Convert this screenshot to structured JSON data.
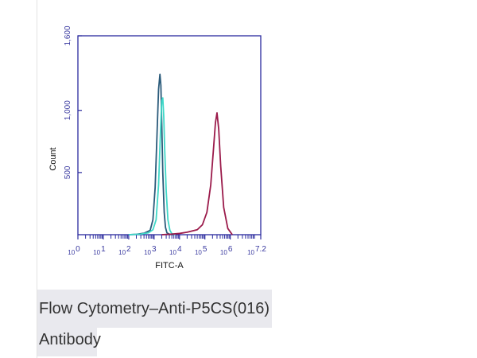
{
  "chart_data": {
    "type": "line",
    "title": "",
    "xlabel": "FITC-A",
    "ylabel": "Count",
    "x_scale": "log",
    "xlim": [
      1,
      15848932
    ],
    "ylim": [
      0,
      1600
    ],
    "x_ticks": [
      {
        "base": "10",
        "exp": "0"
      },
      {
        "base": "10",
        "exp": "1"
      },
      {
        "base": "10",
        "exp": "2"
      },
      {
        "base": "10",
        "exp": "3"
      },
      {
        "base": "10",
        "exp": "4"
      },
      {
        "base": "10",
        "exp": "5"
      },
      {
        "base": "10",
        "exp": "6"
      },
      {
        "base": "10",
        "exp": "7.2"
      }
    ],
    "y_ticks": [
      "500",
      "1,000",
      "1,600"
    ],
    "y_tick_values": [
      500,
      1000,
      1600
    ],
    "grid": false,
    "legend": "none",
    "series": [
      {
        "color": "#2a5a7a",
        "x": [
          100,
          200,
          400,
          700,
          900,
          1100,
          1300,
          1500,
          1700,
          1850,
          2000,
          2200,
          2500,
          2800,
          3200,
          4000,
          6000
        ],
        "y": [
          0,
          3,
          12,
          35,
          120,
          380,
          800,
          1170,
          1290,
          1200,
          900,
          500,
          180,
          60,
          15,
          4,
          0
        ]
      },
      {
        "color": "#40d8c8",
        "x": [
          100,
          300,
          600,
          900,
          1200,
          1500,
          1800,
          2000,
          2200,
          2400,
          2600,
          3000,
          3500,
          4200,
          5000,
          7000
        ],
        "y": [
          0,
          5,
          15,
          40,
          120,
          400,
          850,
          1080,
          1100,
          950,
          700,
          350,
          120,
          35,
          8,
          0
        ]
      },
      {
        "color": "#9b1b4b",
        "x": [
          2000,
          5000,
          10000,
          20000,
          50000,
          80000,
          120000,
          170000,
          220000,
          260000,
          300000,
          350000,
          420000,
          550000,
          800000,
          1200000
        ],
        "y": [
          0,
          5,
          10,
          20,
          40,
          80,
          180,
          400,
          700,
          900,
          980,
          850,
          550,
          220,
          50,
          0
        ]
      }
    ]
  },
  "caption": {
    "line1": "Flow Cytometry–Anti-P5CS(016)",
    "line2": "Antibody"
  }
}
